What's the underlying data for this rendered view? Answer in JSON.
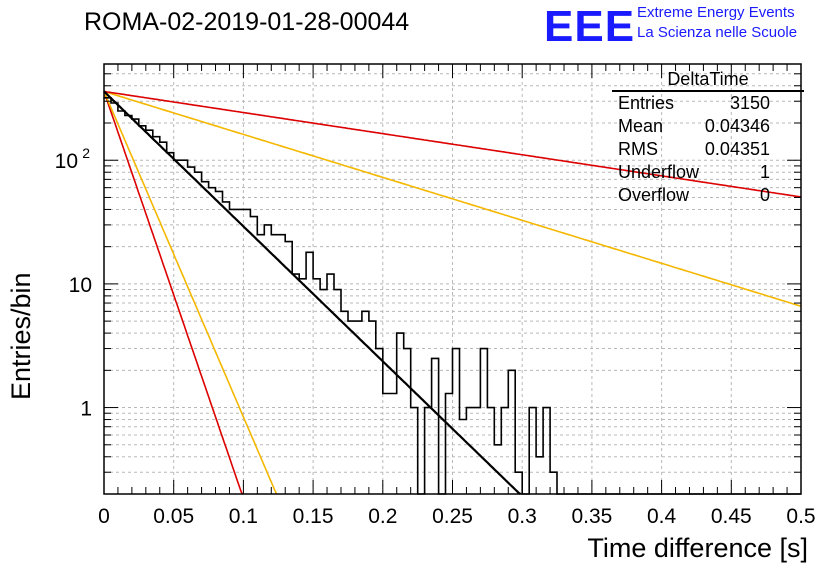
{
  "header": {
    "title": "ROMA-02-2019-01-28-00044",
    "logo_text": "EEE",
    "logo_line1": "Extreme Energy Events",
    "logo_line2": "La Scienza nelle Scuole"
  },
  "stats": {
    "title": "DeltaTime",
    "rows": [
      {
        "label": "Entries",
        "value": "3150"
      },
      {
        "label": "Mean",
        "value": "0.04346"
      },
      {
        "label": "RMS",
        "value": "0.04351"
      },
      {
        "label": "Underflow",
        "value": "1"
      },
      {
        "label": "Overflow",
        "value": "0"
      }
    ]
  },
  "chart_data": {
    "type": "line",
    "xlabel": "Time difference [s]",
    "ylabel": "Entries/bin",
    "xlim": [
      0,
      0.5
    ],
    "ylim": [
      0.2,
      600
    ],
    "log_y": true,
    "grid": true,
    "x_ticks": [
      "0",
      "0.05",
      "0.1",
      "0.15",
      "0.2",
      "0.25",
      "0.3",
      "0.35",
      "0.4",
      "0.45",
      "0.5"
    ],
    "y_ticks": [
      {
        "value": 1,
        "label": "1"
      },
      {
        "value": 10,
        "label": "10"
      },
      {
        "value": 100,
        "label": "10^2"
      }
    ],
    "histogram": {
      "bin_width": 0.005,
      "color": "#000000",
      "values": [
        320,
        290,
        250,
        230,
        215,
        190,
        175,
        155,
        140,
        115,
        100,
        100,
        88,
        80,
        67,
        60,
        56,
        46,
        40,
        40,
        40,
        35,
        25,
        30,
        25,
        25,
        22,
        12,
        11,
        18,
        11,
        9,
        12,
        9,
        6,
        5,
        5,
        6,
        5,
        3,
        1.3,
        1.3,
        4,
        3,
        1,
        0.1,
        1,
        2.5,
        0.1,
        1.3,
        3,
        0.8,
        1,
        1,
        3,
        1,
        0.5,
        1,
        2,
        0.3,
        0.1,
        1,
        0.4,
        1,
        0.3,
        0.1,
        0.1,
        0.1,
        0.1,
        0.1,
        0.1,
        0.1,
        0.1,
        0.1,
        0.1,
        0.1,
        0.1,
        0.1,
        0.1,
        0.1,
        0.1,
        0.1,
        0.1,
        0.1,
        0.1,
        0.1,
        0.1,
        0.1,
        0.1,
        0.1,
        0.1,
        0.1,
        0.1,
        0.1,
        0.1,
        0.1,
        0.1,
        0.1,
        0.1,
        0.1
      ]
    },
    "series": [
      {
        "amplitude": 360,
        "decay": 0.0398,
        "color": "#000000",
        "width": 2.2
      },
      {
        "amplitude": 360,
        "decay": 0.0132,
        "color": "#dd0000",
        "width": 1.6
      },
      {
        "amplitude": 360,
        "decay": 0.0165,
        "color": "#f5b800",
        "width": 1.6
      },
      {
        "amplitude": 360,
        "decay": 0.125,
        "color": "#f5b800",
        "width": 1.6
      },
      {
        "amplitude": 360,
        "decay": 0.2545,
        "color": "#dd0000",
        "width": 1.6
      }
    ]
  }
}
